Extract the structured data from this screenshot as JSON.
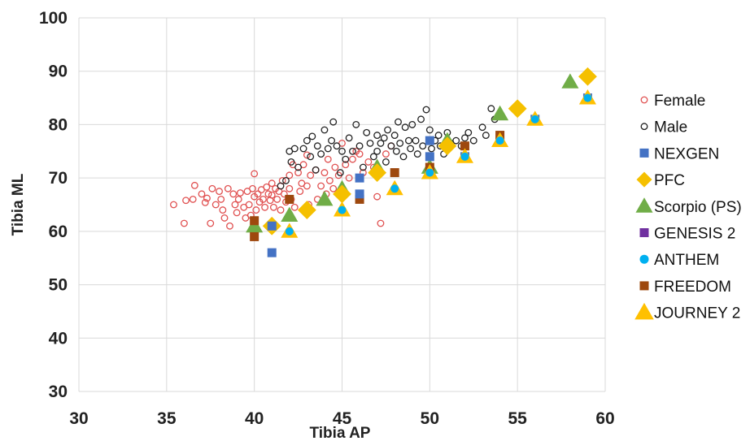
{
  "chart_data": {
    "type": "scatter",
    "xlabel": "Tibia AP",
    "ylabel": "Tibia ML",
    "xlim": [
      30,
      60
    ],
    "ylim": [
      30,
      100
    ],
    "xticks": [
      "30",
      "35",
      "40",
      "45",
      "50",
      "55",
      "60"
    ],
    "yticks": [
      "30",
      "40",
      "50",
      "60",
      "70",
      "80",
      "90",
      "100"
    ],
    "grid": true,
    "legend_position": "right",
    "series": [
      {
        "name": "Female",
        "marker": "circle-open",
        "color": "#e05050",
        "points": [
          [
            35.4,
            65
          ],
          [
            36,
            61.5
          ],
          [
            36.1,
            65.8
          ],
          [
            36.5,
            66
          ],
          [
            36.6,
            68.6
          ],
          [
            37,
            67
          ],
          [
            37.2,
            65.4
          ],
          [
            37.3,
            66.2
          ],
          [
            37.5,
            61.5
          ],
          [
            37.6,
            68
          ],
          [
            37.8,
            65
          ],
          [
            38,
            67.5
          ],
          [
            38.1,
            66
          ],
          [
            38.2,
            64
          ],
          [
            38.3,
            62.5
          ],
          [
            38.5,
            68
          ],
          [
            38.6,
            61
          ],
          [
            38.8,
            67
          ],
          [
            38.9,
            65
          ],
          [
            39,
            63.5
          ],
          [
            39.1,
            66
          ],
          [
            39.2,
            67.2
          ],
          [
            39.4,
            64.5
          ],
          [
            39.5,
            62.5
          ],
          [
            39.6,
            67.5
          ],
          [
            39.7,
            65
          ],
          [
            39.8,
            63
          ],
          [
            39.9,
            68
          ],
          [
            40,
            66.5
          ],
          [
            40,
            70.8
          ],
          [
            40.1,
            64
          ],
          [
            40.2,
            67
          ],
          [
            40.3,
            65.5
          ],
          [
            40.4,
            67.8
          ],
          [
            40.5,
            66
          ],
          [
            40.6,
            64.5
          ],
          [
            40.7,
            68.3
          ],
          [
            40.8,
            67
          ],
          [
            40.9,
            65.8
          ],
          [
            41,
            66.8
          ],
          [
            41,
            69
          ],
          [
            41.1,
            64.5
          ],
          [
            41.2,
            68
          ],
          [
            41.3,
            66
          ],
          [
            41.4,
            67.5
          ],
          [
            41.5,
            64
          ],
          [
            41.6,
            69.5
          ],
          [
            41.7,
            67
          ],
          [
            41.8,
            65.5
          ],
          [
            41.9,
            62.5
          ],
          [
            42,
            68
          ],
          [
            42,
            70.5
          ],
          [
            42.1,
            66
          ],
          [
            42.2,
            72.5
          ],
          [
            42.3,
            64.5
          ],
          [
            42.5,
            71
          ],
          [
            42.6,
            67.5
          ],
          [
            42.7,
            69
          ],
          [
            42.8,
            72.5
          ],
          [
            43,
            68.5
          ],
          [
            43,
            74.3
          ],
          [
            43.1,
            65
          ],
          [
            43.2,
            70.5
          ],
          [
            43.5,
            71.5
          ],
          [
            43.6,
            66
          ],
          [
            43.8,
            68.5
          ],
          [
            44,
            71
          ],
          [
            44.1,
            67
          ],
          [
            44.2,
            73.5
          ],
          [
            44.3,
            69.5
          ],
          [
            44.5,
            68
          ],
          [
            44.6,
            72
          ],
          [
            44.8,
            70.5
          ],
          [
            45,
            76.5
          ],
          [
            45,
            67.5
          ],
          [
            45.2,
            72.5
          ],
          [
            45.4,
            70
          ],
          [
            45.6,
            73.5
          ],
          [
            45.8,
            75
          ],
          [
            46,
            74.5
          ],
          [
            46.2,
            71
          ],
          [
            46.5,
            73
          ],
          [
            46.8,
            72
          ],
          [
            47,
            66.5
          ],
          [
            47.2,
            61.5
          ],
          [
            47.5,
            74.5
          ],
          [
            47.8,
            76
          ]
        ]
      },
      {
        "name": "Male",
        "marker": "circle-open",
        "color": "#222222",
        "points": [
          [
            41.5,
            68.5
          ],
          [
            41.8,
            69.5
          ],
          [
            42,
            75
          ],
          [
            42.1,
            73
          ],
          [
            42.3,
            75.5
          ],
          [
            42.5,
            72
          ],
          [
            42.8,
            75.5
          ],
          [
            43,
            77
          ],
          [
            43.2,
            74
          ],
          [
            43.3,
            77.8
          ],
          [
            43.5,
            71.5
          ],
          [
            43.6,
            76
          ],
          [
            43.8,
            74.5
          ],
          [
            44,
            79
          ],
          [
            44.2,
            75.5
          ],
          [
            44.4,
            77
          ],
          [
            44.5,
            80.5
          ],
          [
            44.7,
            76
          ],
          [
            44.9,
            71
          ],
          [
            45,
            75
          ],
          [
            45.2,
            73.5
          ],
          [
            45.4,
            77.5
          ],
          [
            45.6,
            75
          ],
          [
            45.8,
            80
          ],
          [
            46,
            76
          ],
          [
            46.2,
            72
          ],
          [
            46.4,
            78.5
          ],
          [
            46.6,
            76.5
          ],
          [
            46.8,
            74
          ],
          [
            47,
            78
          ],
          [
            47,
            75
          ],
          [
            47.2,
            76.5
          ],
          [
            47.4,
            77.5
          ],
          [
            47.5,
            73
          ],
          [
            47.6,
            79
          ],
          [
            47.8,
            76
          ],
          [
            48,
            78
          ],
          [
            48.1,
            75
          ],
          [
            48.2,
            80.5
          ],
          [
            48.3,
            76.5
          ],
          [
            48.5,
            74
          ],
          [
            48.6,
            79.5
          ],
          [
            48.8,
            77
          ],
          [
            48.9,
            75.5
          ],
          [
            49,
            80
          ],
          [
            49.2,
            77
          ],
          [
            49.3,
            74.5
          ],
          [
            49.5,
            81
          ],
          [
            49.6,
            76
          ],
          [
            49.8,
            82.8
          ],
          [
            50,
            79
          ],
          [
            50.1,
            75.5
          ],
          [
            50.3,
            77
          ],
          [
            50.5,
            78
          ],
          [
            50.6,
            76
          ],
          [
            50.8,
            74.5
          ],
          [
            51,
            78.5
          ],
          [
            51.2,
            76.5
          ],
          [
            51.5,
            77
          ],
          [
            51.8,
            76
          ],
          [
            52,
            77.5
          ],
          [
            52.2,
            78.5
          ],
          [
            52.5,
            77
          ],
          [
            53,
            79.5
          ],
          [
            53.2,
            78
          ],
          [
            53.5,
            83
          ],
          [
            53.7,
            81
          ]
        ]
      },
      {
        "name": "NEXGEN",
        "marker": "square",
        "color": "#4472c4",
        "points": [
          [
            41,
            56
          ],
          [
            41,
            61
          ],
          [
            46,
            67
          ],
          [
            46,
            70
          ],
          [
            50,
            74
          ],
          [
            50,
            77
          ],
          [
            52,
            74
          ],
          [
            56,
            81
          ],
          [
            59,
            85
          ]
        ]
      },
      {
        "name": "PFC",
        "marker": "diamond",
        "color": "#f5c000",
        "points": [
          [
            41,
            61
          ],
          [
            43,
            64
          ],
          [
            45,
            67
          ],
          [
            47,
            71
          ],
          [
            51,
            76
          ],
          [
            55,
            83
          ],
          [
            59,
            89
          ]
        ]
      },
      {
        "name": "Scorpio (PS)",
        "marker": "triangle",
        "color": "#70ad47",
        "points": [
          [
            40,
            61
          ],
          [
            42,
            63
          ],
          [
            44,
            66
          ],
          [
            45,
            68
          ],
          [
            47,
            72
          ],
          [
            50,
            72
          ],
          [
            51,
            77
          ],
          [
            54,
            82
          ],
          [
            58,
            88
          ]
        ]
      },
      {
        "name": "GENESIS 2",
        "marker": "square",
        "color": "#7030a0",
        "points": []
      },
      {
        "name": "ANTHEM",
        "marker": "circle",
        "color": "#00b0f0",
        "points": [
          [
            42,
            60
          ],
          [
            45,
            64
          ],
          [
            48,
            68
          ],
          [
            50,
            71
          ],
          [
            52,
            74
          ],
          [
            54,
            77
          ],
          [
            56,
            81
          ],
          [
            59,
            85
          ]
        ]
      },
      {
        "name": "FREEDOM",
        "marker": "square",
        "color": "#9e480e",
        "points": [
          [
            40,
            59
          ],
          [
            40,
            62
          ],
          [
            42,
            66
          ],
          [
            46,
            66
          ],
          [
            48,
            71
          ],
          [
            50,
            72
          ],
          [
            52,
            76
          ],
          [
            54,
            78
          ]
        ]
      },
      {
        "name": "JOURNEY 2",
        "marker": "triangle",
        "color": "#ffc000",
        "points": [
          [
            42,
            60
          ],
          [
            45,
            64
          ],
          [
            48,
            68
          ],
          [
            50,
            71
          ],
          [
            52,
            74
          ],
          [
            54,
            77
          ],
          [
            56,
            81
          ],
          [
            59,
            85
          ]
        ]
      }
    ]
  }
}
